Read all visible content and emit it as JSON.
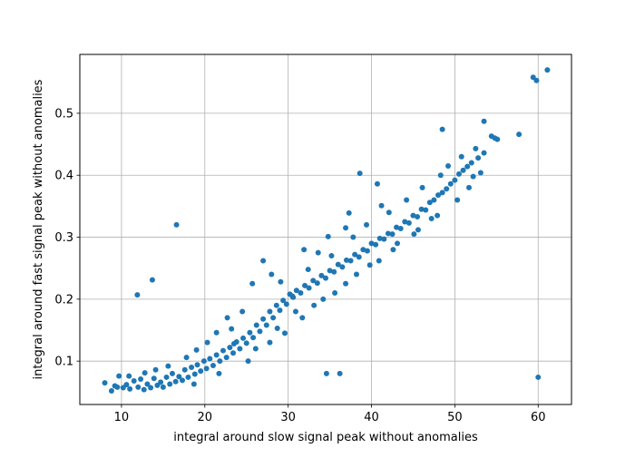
{
  "chart_data": {
    "type": "scatter",
    "title": "",
    "xlabel": "integral around slow signal peak without anomalies",
    "ylabel": "integral around fast signal peak without anomalies",
    "xlim": [
      5,
      64
    ],
    "ylim": [
      0.03,
      0.595
    ],
    "xticks": [
      10,
      20,
      30,
      40,
      50,
      60
    ],
    "yticks": [
      0.1,
      0.2,
      0.3,
      0.4,
      0.5
    ],
    "xtick_labels": [
      "10",
      "20",
      "30",
      "40",
      "50",
      "60"
    ],
    "ytick_labels": [
      "0.1",
      "0.2",
      "0.3",
      "0.4",
      "0.5"
    ],
    "grid": true,
    "legend": "none",
    "marker_color": "#1f77b4",
    "series": [
      {
        "points": [
          [
            8.0,
            0.065
          ],
          [
            8.8,
            0.052
          ],
          [
            9.5,
            0.058
          ],
          [
            9.7,
            0.076
          ],
          [
            10.2,
            0.057
          ],
          [
            10.6,
            0.062
          ],
          [
            11.0,
            0.055
          ],
          [
            11.5,
            0.068
          ],
          [
            12.0,
            0.058
          ],
          [
            12.3,
            0.071
          ],
          [
            12.7,
            0.054
          ],
          [
            13.1,
            0.063
          ],
          [
            13.5,
            0.057
          ],
          [
            13.9,
            0.072
          ],
          [
            14.3,
            0.061
          ],
          [
            14.7,
            0.066
          ],
          [
            15.0,
            0.058
          ],
          [
            15.4,
            0.074
          ],
          [
            15.8,
            0.063
          ],
          [
            16.1,
            0.08
          ],
          [
            16.5,
            0.067
          ],
          [
            16.9,
            0.075
          ],
          [
            17.3,
            0.069
          ],
          [
            17.6,
            0.086
          ],
          [
            18.0,
            0.074
          ],
          [
            18.4,
            0.09
          ],
          [
            18.8,
            0.079
          ],
          [
            19.1,
            0.094
          ],
          [
            19.5,
            0.084
          ],
          [
            19.9,
            0.1
          ],
          [
            20.2,
            0.088
          ],
          [
            20.6,
            0.104
          ],
          [
            21.0,
            0.093
          ],
          [
            21.4,
            0.11
          ],
          [
            21.8,
            0.1
          ],
          [
            22.2,
            0.117
          ],
          [
            22.6,
            0.106
          ],
          [
            23.0,
            0.122
          ],
          [
            23.4,
            0.113
          ],
          [
            23.8,
            0.131
          ],
          [
            24.2,
            0.12
          ],
          [
            24.6,
            0.137
          ],
          [
            25.0,
            0.129
          ],
          [
            25.4,
            0.146
          ],
          [
            25.8,
            0.138
          ],
          [
            26.2,
            0.158
          ],
          [
            26.6,
            0.148
          ],
          [
            27.0,
            0.168
          ],
          [
            27.4,
            0.158
          ],
          [
            27.8,
            0.18
          ],
          [
            28.2,
            0.17
          ],
          [
            28.6,
            0.19
          ],
          [
            29.0,
            0.182
          ],
          [
            29.4,
            0.198
          ],
          [
            29.8,
            0.192
          ],
          [
            30.2,
            0.208
          ],
          [
            30.6,
            0.203
          ],
          [
            31.0,
            0.214
          ],
          [
            31.5,
            0.21
          ],
          [
            32.0,
            0.222
          ],
          [
            32.5,
            0.218
          ],
          [
            33.0,
            0.23
          ],
          [
            33.5,
            0.226
          ],
          [
            34.0,
            0.238
          ],
          [
            34.5,
            0.234
          ],
          [
            35.0,
            0.246
          ],
          [
            35.5,
            0.244
          ],
          [
            36.0,
            0.256
          ],
          [
            36.5,
            0.252
          ],
          [
            37.0,
            0.263
          ],
          [
            37.5,
            0.262
          ],
          [
            38.0,
            0.272
          ],
          [
            38.5,
            0.268
          ],
          [
            39.0,
            0.28
          ],
          [
            39.5,
            0.278
          ],
          [
            40.0,
            0.29
          ],
          [
            40.5,
            0.288
          ],
          [
            41.0,
            0.298
          ],
          [
            41.5,
            0.297
          ],
          [
            42.0,
            0.306
          ],
          [
            42.5,
            0.305
          ],
          [
            43.0,
            0.316
          ],
          [
            43.5,
            0.314
          ],
          [
            44.0,
            0.325
          ],
          [
            44.5,
            0.323
          ],
          [
            45.0,
            0.335
          ],
          [
            45.5,
            0.333
          ],
          [
            46.0,
            0.345
          ],
          [
            46.5,
            0.344
          ],
          [
            47.0,
            0.356
          ],
          [
            47.5,
            0.36
          ],
          [
            48.0,
            0.368
          ],
          [
            48.5,
            0.372
          ],
          [
            49.0,
            0.378
          ],
          [
            49.5,
            0.386
          ],
          [
            50.0,
            0.392
          ],
          [
            50.5,
            0.402
          ],
          [
            51.0,
            0.408
          ],
          [
            51.5,
            0.414
          ],
          [
            52.0,
            0.42
          ],
          [
            52.8,
            0.428
          ],
          [
            53.5,
            0.436
          ],
          [
            16.6,
            0.32
          ],
          [
            13.7,
            0.231
          ],
          [
            11.9,
            0.207
          ],
          [
            34.6,
            0.08
          ],
          [
            36.2,
            0.08
          ],
          [
            60.0,
            0.074
          ],
          [
            59.4,
            0.558
          ],
          [
            59.8,
            0.553
          ],
          [
            61.1,
            0.57
          ],
          [
            57.7,
            0.466
          ],
          [
            53.5,
            0.487
          ],
          [
            54.4,
            0.463
          ],
          [
            54.8,
            0.46
          ],
          [
            55.1,
            0.458
          ],
          [
            48.5,
            0.474
          ],
          [
            52.5,
            0.443
          ],
          [
            38.6,
            0.403
          ],
          [
            40.7,
            0.386
          ],
          [
            37.3,
            0.339
          ],
          [
            41.2,
            0.351
          ],
          [
            36.9,
            0.315
          ],
          [
            34.8,
            0.301
          ],
          [
            33.6,
            0.275
          ],
          [
            31.9,
            0.28
          ],
          [
            30.5,
            0.205
          ],
          [
            27.0,
            0.262
          ],
          [
            25.7,
            0.225
          ],
          [
            23.2,
            0.152
          ],
          [
            21.4,
            0.146
          ],
          [
            23.5,
            0.128
          ],
          [
            26.1,
            0.12
          ],
          [
            28.7,
            0.153
          ],
          [
            30.9,
            0.18
          ],
          [
            33.1,
            0.19
          ],
          [
            35.6,
            0.21
          ],
          [
            38.2,
            0.24
          ],
          [
            40.9,
            0.262
          ],
          [
            43.1,
            0.29
          ],
          [
            45.6,
            0.312
          ],
          [
            47.2,
            0.33
          ],
          [
            50.3,
            0.36
          ],
          [
            44.2,
            0.36
          ],
          [
            42.1,
            0.34
          ],
          [
            39.4,
            0.32
          ],
          [
            37.8,
            0.3
          ],
          [
            46.1,
            0.38
          ],
          [
            48.3,
            0.4
          ],
          [
            50.8,
            0.43
          ],
          [
            49.2,
            0.415
          ],
          [
            28.0,
            0.24
          ],
          [
            29.1,
            0.228
          ],
          [
            32.4,
            0.248
          ],
          [
            35.2,
            0.27
          ],
          [
            24.5,
            0.18
          ],
          [
            22.7,
            0.17
          ],
          [
            20.3,
            0.13
          ],
          [
            19.0,
            0.118
          ],
          [
            17.8,
            0.106
          ],
          [
            15.6,
            0.092
          ],
          [
            14.1,
            0.086
          ],
          [
            12.8,
            0.081
          ],
          [
            10.9,
            0.076
          ],
          [
            9.2,
            0.06
          ],
          [
            18.7,
            0.063
          ],
          [
            21.7,
            0.08
          ],
          [
            25.2,
            0.1
          ],
          [
            27.8,
            0.13
          ],
          [
            29.6,
            0.145
          ],
          [
            31.7,
            0.17
          ],
          [
            34.2,
            0.2
          ],
          [
            36.9,
            0.225
          ],
          [
            39.8,
            0.255
          ],
          [
            42.6,
            0.28
          ],
          [
            45.1,
            0.305
          ],
          [
            47.9,
            0.335
          ],
          [
            51.7,
            0.38
          ],
          [
            52.2,
            0.398
          ],
          [
            53.1,
            0.404
          ]
        ]
      }
    ]
  }
}
